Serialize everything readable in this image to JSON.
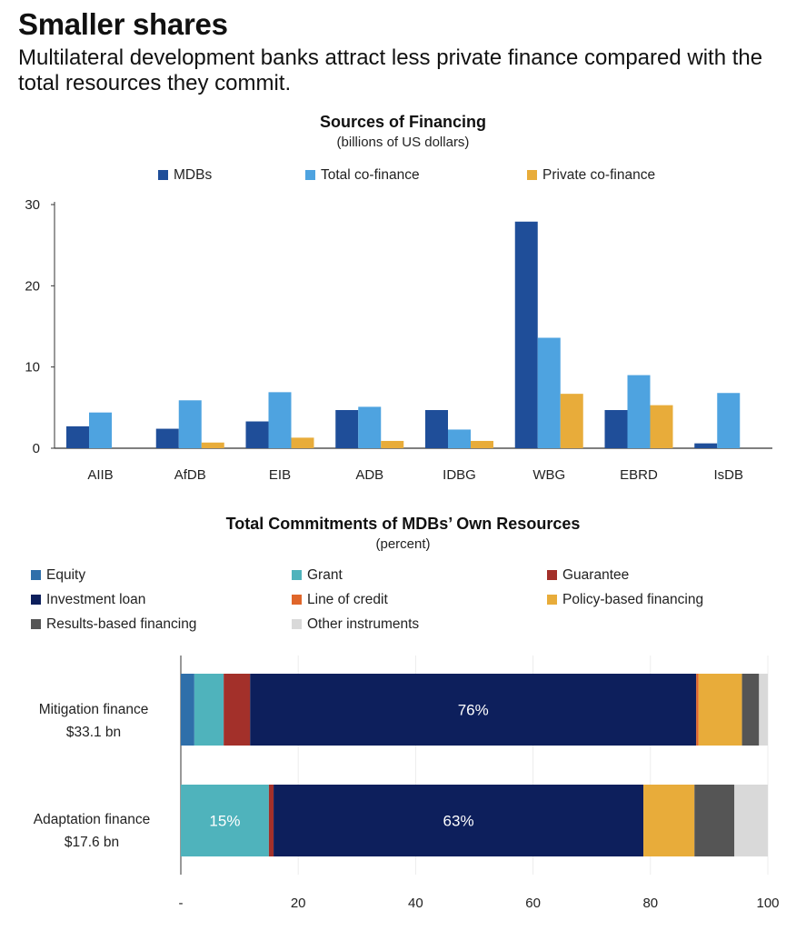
{
  "header": {
    "title": "Smaller shares",
    "subtitle": "Multilateral development banks attract less private finance compared with the total resources they commit."
  },
  "chart_data": [
    {
      "type": "bar",
      "title": "Sources of Financing",
      "subtitle": "(billions of US dollars)",
      "categories": [
        "AIIB",
        "AfDB",
        "EIB",
        "ADB",
        "IDBG",
        "WBG",
        "EBRD",
        "IsDB"
      ],
      "series": [
        {
          "name": "MDBs",
          "color": "#1f4e99",
          "values": [
            2.7,
            2.4,
            3.3,
            4.7,
            4.7,
            27.9,
            4.7,
            0.6
          ]
        },
        {
          "name": "Total co-finance",
          "color": "#4ea3e0",
          "values": [
            4.4,
            5.9,
            6.9,
            5.1,
            2.3,
            13.6,
            9.0,
            6.8
          ]
        },
        {
          "name": "Private co-finance",
          "color": "#e8ac3a",
          "values": [
            0,
            0.7,
            1.3,
            0.9,
            0.9,
            6.7,
            5.3,
            0
          ]
        }
      ],
      "ylim": [
        0,
        30
      ],
      "yticks": [
        0,
        10,
        20,
        30
      ],
      "legend_position": "top",
      "grid": false
    },
    {
      "type": "bar",
      "orientation": "horizontal",
      "stacked": true,
      "title": "Total Commitments of MDBs’ Own Resources",
      "subtitle": "(percent)",
      "categories": [
        {
          "line1": "Mitigation finance",
          "line2": "$33.1 bn"
        },
        {
          "line1": "Adaptation finance",
          "line2": "$17.6 bn"
        }
      ],
      "series": [
        {
          "name": "Equity",
          "color": "#2f6faa",
          "values": [
            2.3,
            0
          ]
        },
        {
          "name": "Grant",
          "color": "#4fb3bc",
          "values": [
            5.0,
            15.0
          ]
        },
        {
          "name": "Guarantee",
          "color": "#a3302a",
          "values": [
            4.5,
            0.8
          ]
        },
        {
          "name": "Investment loan",
          "color": "#0d1f5c",
          "values": [
            76.0,
            63.0
          ]
        },
        {
          "name": "Line of credit",
          "color": "#e0662a",
          "values": [
            0.4,
            0
          ]
        },
        {
          "name": "Policy-based financing",
          "color": "#e8ac3a",
          "values": [
            7.4,
            8.7
          ]
        },
        {
          "name": "Results-based financing",
          "color": "#555555",
          "values": [
            2.9,
            6.8
          ]
        },
        {
          "name": "Other instruments",
          "color": "#d9d9d9",
          "values": [
            1.5,
            5.7
          ]
        }
      ],
      "data_labels": [
        {
          "row": 0,
          "series": "Investment loan",
          "text": "76%"
        },
        {
          "row": 1,
          "series": "Grant",
          "text": "15%"
        },
        {
          "row": 1,
          "series": "Investment loan",
          "text": "63%"
        }
      ],
      "xlim": [
        0,
        100
      ],
      "xticks": [
        {
          "value": 0,
          "label": "-"
        },
        {
          "value": 20,
          "label": "20"
        },
        {
          "value": 40,
          "label": "40"
        },
        {
          "value": 60,
          "label": "60"
        },
        {
          "value": 80,
          "label": "80"
        },
        {
          "value": 100,
          "label": "100"
        }
      ],
      "legend_position": "top",
      "grid": true
    }
  ]
}
